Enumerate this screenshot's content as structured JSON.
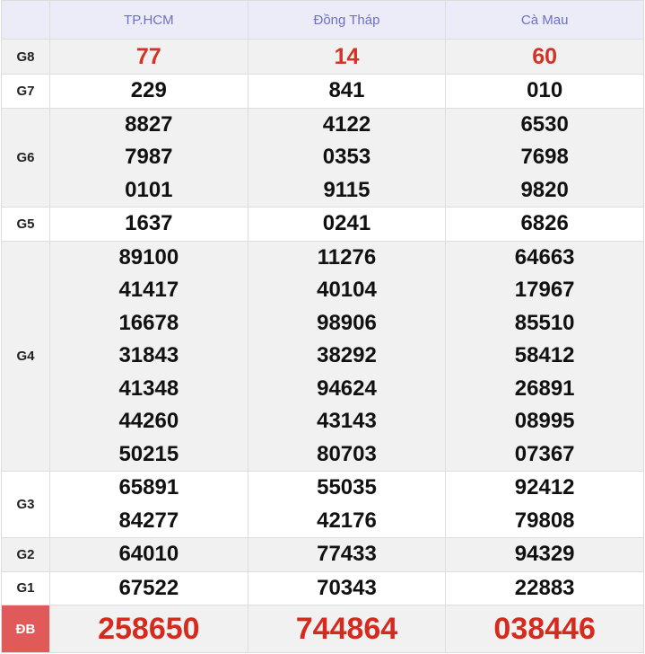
{
  "header": {
    "columns": [
      "TP.HCM",
      "Đồng Tháp",
      "Cà Mau"
    ]
  },
  "rows": [
    {
      "label": "G8",
      "values": [
        [
          "77"
        ],
        [
          "14"
        ],
        [
          "60"
        ]
      ]
    },
    {
      "label": "G7",
      "values": [
        [
          "229"
        ],
        [
          "841"
        ],
        [
          "010"
        ]
      ]
    },
    {
      "label": "G6",
      "values": [
        [
          "8827",
          "7987",
          "0101"
        ],
        [
          "4122",
          "0353",
          "9115"
        ],
        [
          "6530",
          "7698",
          "9820"
        ]
      ]
    },
    {
      "label": "G5",
      "values": [
        [
          "1637"
        ],
        [
          "0241"
        ],
        [
          "6826"
        ]
      ]
    },
    {
      "label": "G4",
      "values": [
        [
          "89100",
          "41417",
          "16678",
          "31843",
          "41348",
          "44260",
          "50215"
        ],
        [
          "11276",
          "40104",
          "98906",
          "38292",
          "94624",
          "43143",
          "80703"
        ],
        [
          "64663",
          "17967",
          "85510",
          "58412",
          "26891",
          "08995",
          "07367"
        ]
      ]
    },
    {
      "label": "G3",
      "values": [
        [
          "65891",
          "84277"
        ],
        [
          "55035",
          "42176"
        ],
        [
          "92412",
          "79808"
        ]
      ]
    },
    {
      "label": "G2",
      "values": [
        [
          "64010"
        ],
        [
          "77433"
        ],
        [
          "94329"
        ]
      ]
    },
    {
      "label": "G1",
      "values": [
        [
          "67522"
        ],
        [
          "70343"
        ],
        [
          "22883"
        ]
      ]
    },
    {
      "label": "ĐB",
      "values": [
        [
          "258650"
        ],
        [
          "744864"
        ],
        [
          "038446"
        ]
      ]
    }
  ],
  "colors": {
    "header_text": "#6f6fc8",
    "highlight": "#d23325",
    "db_label_bg": "#e05a5a"
  }
}
